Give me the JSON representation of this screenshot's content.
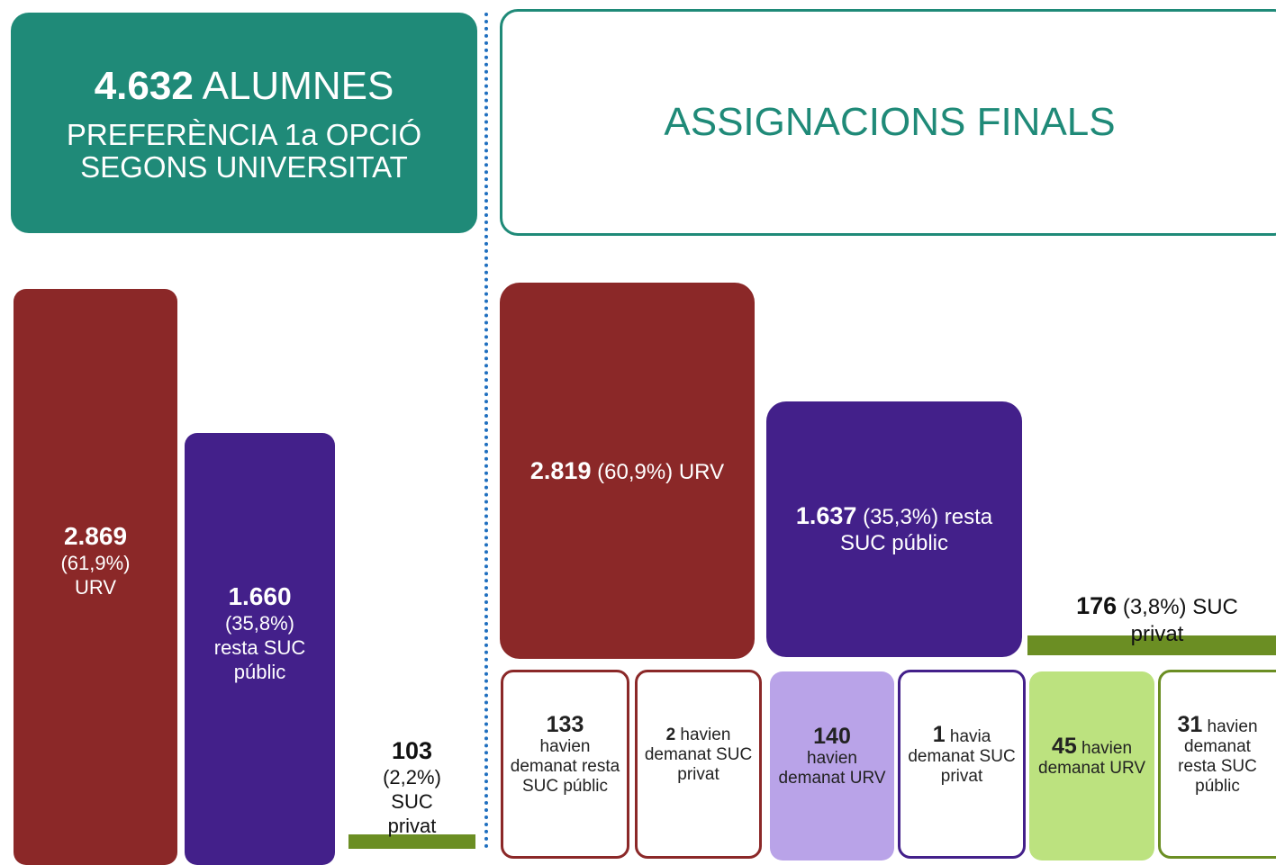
{
  "left": {
    "title_number": "4.632",
    "title_word": "ALUMNES",
    "subtitle": [
      "PREFERÈNCIA 1a OPCIÓ",
      "SEGONS UNIVERSITAT"
    ],
    "bars": [
      {
        "value": "2.869",
        "pct": "(61,9%)",
        "label": "URV"
      },
      {
        "value": "1.660",
        "pct": "(35,8%)",
        "label": "resta SUC públic"
      },
      {
        "value": "103",
        "pct": "(2,2%)",
        "label": "SUC privat"
      }
    ]
  },
  "right": {
    "title": "ASSIGNACIONS FINALS",
    "groups": [
      {
        "value": "2.819",
        "text": "(60,9%) URV"
      },
      {
        "value": "1.637",
        "text": "(35,3%) resta SUC públic"
      },
      {
        "value": "176",
        "text": "(3,8%) SUC privat"
      }
    ],
    "details": [
      {
        "value": "133",
        "text": "havien demanat resta SUC públic"
      },
      {
        "value": "2",
        "text": "havien demanat SUC privat"
      },
      {
        "value": "140",
        "text": "havien demanat URV"
      },
      {
        "value": "1",
        "text": "havia demanat SUC privat"
      },
      {
        "value": "45",
        "text": "havien demanat URV"
      },
      {
        "value": "31",
        "text": "havien demanat resta SUC públic"
      }
    ]
  }
}
